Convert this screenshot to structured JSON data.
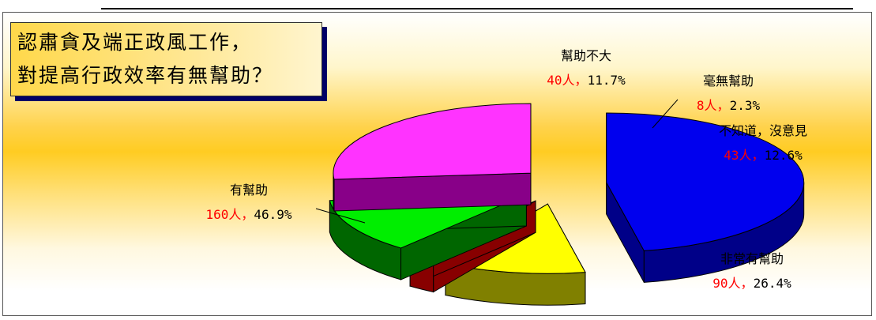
{
  "title": {
    "line1": "認肅貪及端正政風工作，",
    "line2": "對提高行政效率有無幫助？"
  },
  "chart_data": {
    "type": "pie",
    "style": "3d-exploded",
    "categories": [
      "有幫助",
      "幫助不大",
      "毫無幫助",
      "不知道，沒意見",
      "非常有幫助"
    ],
    "series": [
      {
        "counts": [
          160,
          40,
          8,
          43,
          90
        ],
        "count_labels": [
          "160人",
          "40人",
          "8人",
          "43人",
          "90人"
        ],
        "percent_labels": [
          "46.9%",
          "11.7%",
          "2.3%",
          "12.6%",
          "26.4%"
        ],
        "values": [
          46.9,
          11.7,
          2.3,
          12.6,
          26.4
        ]
      }
    ],
    "colors": [
      "#0000ee",
      "#ffff00",
      "#ff0000",
      "#00ee00",
      "#ff33ff"
    ],
    "side_colors": [
      "#000088",
      "#808000",
      "#880000",
      "#006600",
      "#880088"
    ],
    "separator": "，",
    "label_color": "#ff0000"
  }
}
